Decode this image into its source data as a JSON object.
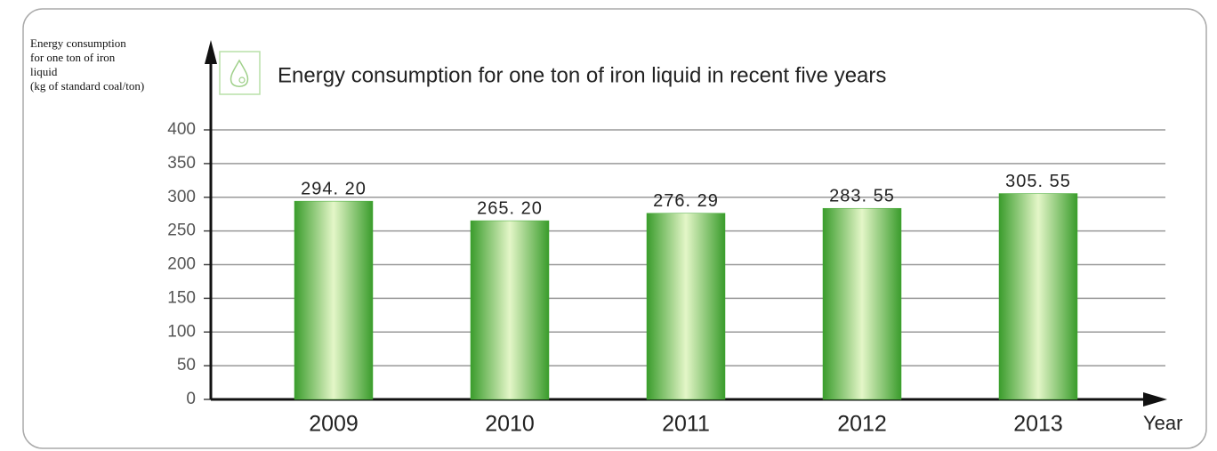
{
  "chart_data": {
    "type": "bar",
    "title": "Energy consumption for one ton of iron liquid in recent five years",
    "ylabel": [
      "Energy consumption",
      "for one ton of iron",
      "liquid",
      "(kg of standard coal/ton)"
    ],
    "xlabel": "Year",
    "categories": [
      "2009",
      "2010",
      "2011",
      "2012",
      "2013"
    ],
    "values": [
      294.2,
      265.2,
      276.29,
      283.55,
      305.55
    ],
    "value_labels": [
      "294. 20",
      "265. 20",
      "276. 29",
      "283. 55",
      "305. 55"
    ],
    "color": "#3fa82f",
    "ylim": [
      0,
      400
    ],
    "yticks": [
      0,
      50,
      100,
      150,
      200,
      250,
      300,
      350,
      400
    ],
    "grid": true
  }
}
